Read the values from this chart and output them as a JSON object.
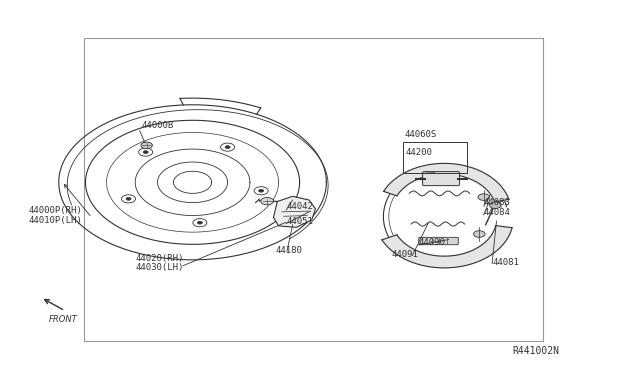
{
  "bg_color": "#ffffff",
  "border_color": "#aaaaaa",
  "line_color": "#333333",
  "text_color": "#333333",
  "fig_width": 6.4,
  "fig_height": 3.72,
  "diagram_ref": "R441002N",
  "border": [
    0.13,
    0.08,
    0.85,
    0.9
  ]
}
